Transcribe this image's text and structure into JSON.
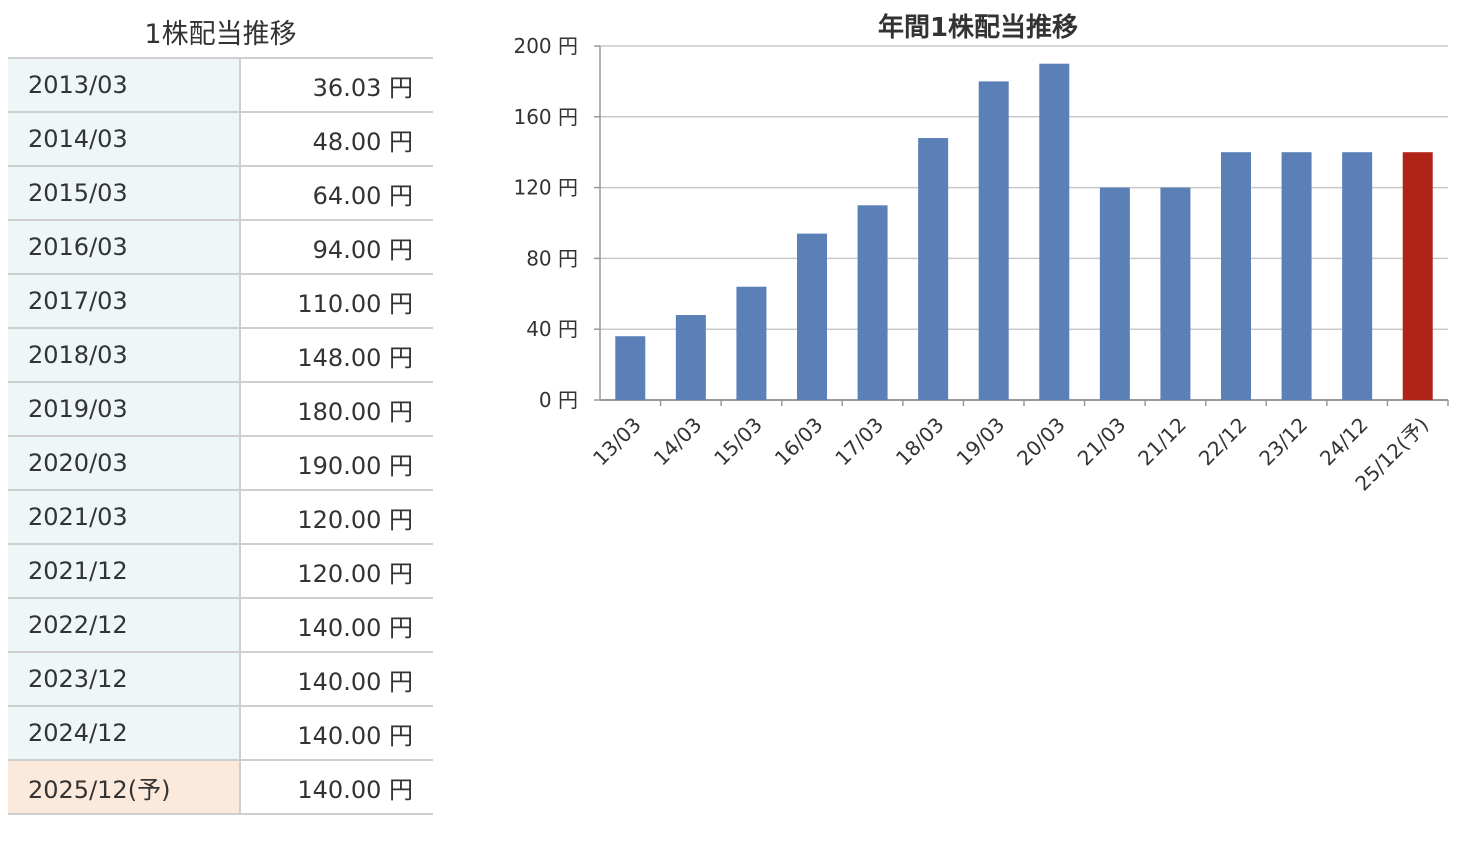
{
  "table": {
    "title": "1株配当推移",
    "rows": [
      {
        "period": "2013/03",
        "amount": "36.03 円"
      },
      {
        "period": "2014/03",
        "amount": "48.00 円"
      },
      {
        "period": "2015/03",
        "amount": "64.00 円"
      },
      {
        "period": "2016/03",
        "amount": "94.00 円"
      },
      {
        "period": "2017/03",
        "amount": "110.00 円"
      },
      {
        "period": "2018/03",
        "amount": "148.00 円"
      },
      {
        "period": "2019/03",
        "amount": "180.00 円"
      },
      {
        "period": "2020/03",
        "amount": "190.00 円"
      },
      {
        "period": "2021/03",
        "amount": "120.00 円"
      },
      {
        "period": "2021/12",
        "amount": "120.00 円"
      },
      {
        "period": "2022/12",
        "amount": "140.00 円"
      },
      {
        "period": "2023/12",
        "amount": "140.00 円"
      },
      {
        "period": "2024/12",
        "amount": "140.00 円"
      },
      {
        "period": "2025/12(予)",
        "amount": "140.00 円",
        "forecast": true
      }
    ]
  },
  "chart_data": {
    "type": "bar",
    "title": "年間1株配当推移",
    "categories": [
      "13/03",
      "14/03",
      "15/03",
      "16/03",
      "17/03",
      "18/03",
      "19/03",
      "20/03",
      "21/03",
      "21/12",
      "22/12",
      "23/12",
      "24/12",
      "25/12(予)"
    ],
    "values": [
      36.03,
      48,
      64,
      94,
      110,
      148,
      180,
      190,
      120,
      120,
      140,
      140,
      140,
      140
    ],
    "forecast_index": 13,
    "ylim": [
      0,
      200
    ],
    "yticks": [
      0,
      40,
      80,
      120,
      160,
      200
    ],
    "ytick_labels": [
      "0 円",
      "40 円",
      "80 円",
      "120 円",
      "160 円",
      "200 円"
    ],
    "grid": true,
    "colors": {
      "bar": "#5b80b8",
      "forecast": "#b02418",
      "grid": "#c8c8c8",
      "axis": "#999999"
    }
  }
}
